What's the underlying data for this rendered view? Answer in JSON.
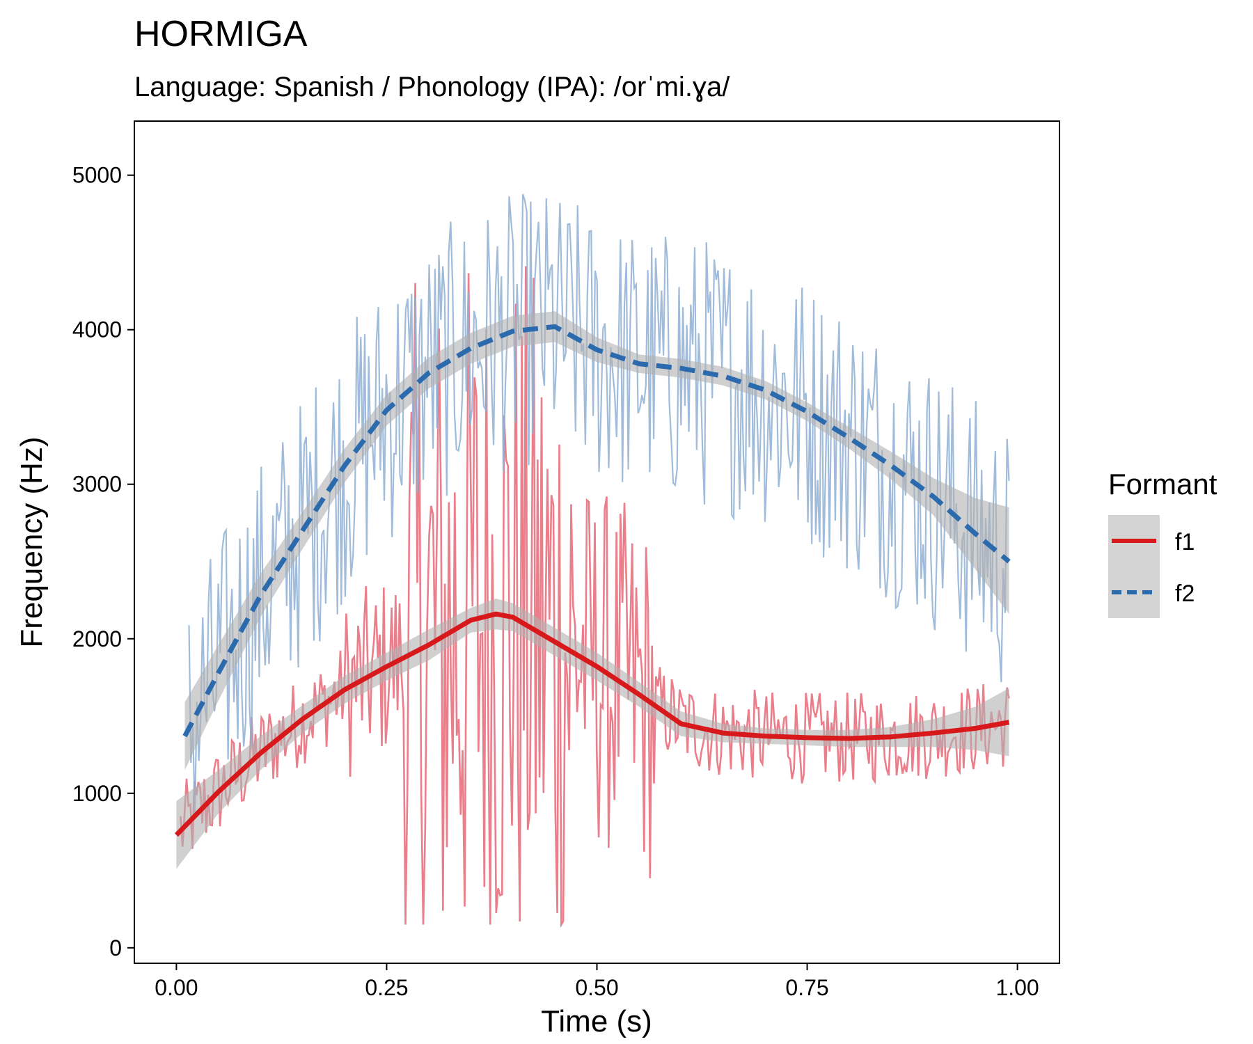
{
  "title": "HORMIGA",
  "subtitle": "Language: Spanish / Phonology (IPA): /orˈmi.ɣa/",
  "chart_data": {
    "type": "line",
    "title": "HORMIGA",
    "subtitle": "Language: Spanish / Phonology (IPA): /orˈmi.ɣa/",
    "xlabel": "Time (s)",
    "ylabel": "Frequency (Hz)",
    "xlim": [
      -0.05,
      1.05
    ],
    "ylim": [
      -100,
      5350
    ],
    "x_ticks": [
      0.0,
      0.25,
      0.5,
      0.75,
      1.0
    ],
    "x_tick_labels": [
      "0.00",
      "0.25",
      "0.50",
      "0.75",
      "1.00"
    ],
    "y_ticks": [
      0,
      1000,
      2000,
      3000,
      4000,
      5000
    ],
    "y_tick_labels": [
      "0",
      "1000",
      "2000",
      "3000",
      "4000",
      "5000"
    ],
    "grid": false,
    "legend": {
      "title": "Formant",
      "placement": "right",
      "entries": [
        "f1",
        "f2"
      ]
    },
    "colors": {
      "f1": "#d7191c",
      "f1_raw": "#e8707d",
      "f2": "#2b6aad",
      "f2_raw": "#8fb0d4",
      "ribbon": "#b0b0b0"
    },
    "series": [
      {
        "name": "f1",
        "line_style": "solid",
        "smooth": {
          "x": [
            0.0,
            0.05,
            0.1,
            0.15,
            0.2,
            0.25,
            0.3,
            0.35,
            0.38,
            0.4,
            0.45,
            0.5,
            0.55,
            0.6,
            0.65,
            0.7,
            0.75,
            0.8,
            0.85,
            0.9,
            0.95,
            0.99
          ],
          "y": [
            730,
            1010,
            1260,
            1480,
            1670,
            1820,
            1960,
            2120,
            2160,
            2140,
            1980,
            1820,
            1640,
            1450,
            1390,
            1370,
            1360,
            1355,
            1365,
            1390,
            1420,
            1460
          ],
          "lower": [
            510,
            870,
            1150,
            1390,
            1580,
            1730,
            1860,
            2040,
            2060,
            2050,
            1890,
            1730,
            1560,
            1370,
            1330,
            1320,
            1310,
            1300,
            1300,
            1300,
            1280,
            1240
          ],
          "upper": [
            950,
            1150,
            1370,
            1570,
            1760,
            1910,
            2060,
            2200,
            2260,
            2230,
            2070,
            1910,
            1720,
            1530,
            1450,
            1420,
            1410,
            1410,
            1430,
            1480,
            1560,
            1680
          ]
        },
        "raw_range": [
          150,
          4800
        ]
      },
      {
        "name": "f2",
        "line_style": "dashed",
        "smooth": {
          "x": [
            0.01,
            0.05,
            0.1,
            0.15,
            0.2,
            0.25,
            0.3,
            0.35,
            0.4,
            0.45,
            0.5,
            0.55,
            0.6,
            0.65,
            0.7,
            0.75,
            0.8,
            0.85,
            0.9,
            0.95,
            0.99
          ],
          "y": [
            1370,
            1780,
            2280,
            2700,
            3120,
            3480,
            3720,
            3880,
            3990,
            4020,
            3870,
            3780,
            3750,
            3700,
            3610,
            3470,
            3300,
            3120,
            2920,
            2680,
            2500
          ],
          "lower": [
            1150,
            1600,
            2140,
            2580,
            3010,
            3380,
            3620,
            3780,
            3890,
            3920,
            3790,
            3720,
            3690,
            3640,
            3550,
            3410,
            3230,
            3030,
            2800,
            2450,
            2160
          ],
          "upper": [
            1590,
            1960,
            2420,
            2820,
            3230,
            3580,
            3820,
            3980,
            4090,
            4120,
            3950,
            3840,
            3810,
            3760,
            3670,
            3530,
            3370,
            3210,
            3040,
            2910,
            2850
          ]
        },
        "raw_range": [
          700,
          5100
        ]
      }
    ]
  }
}
